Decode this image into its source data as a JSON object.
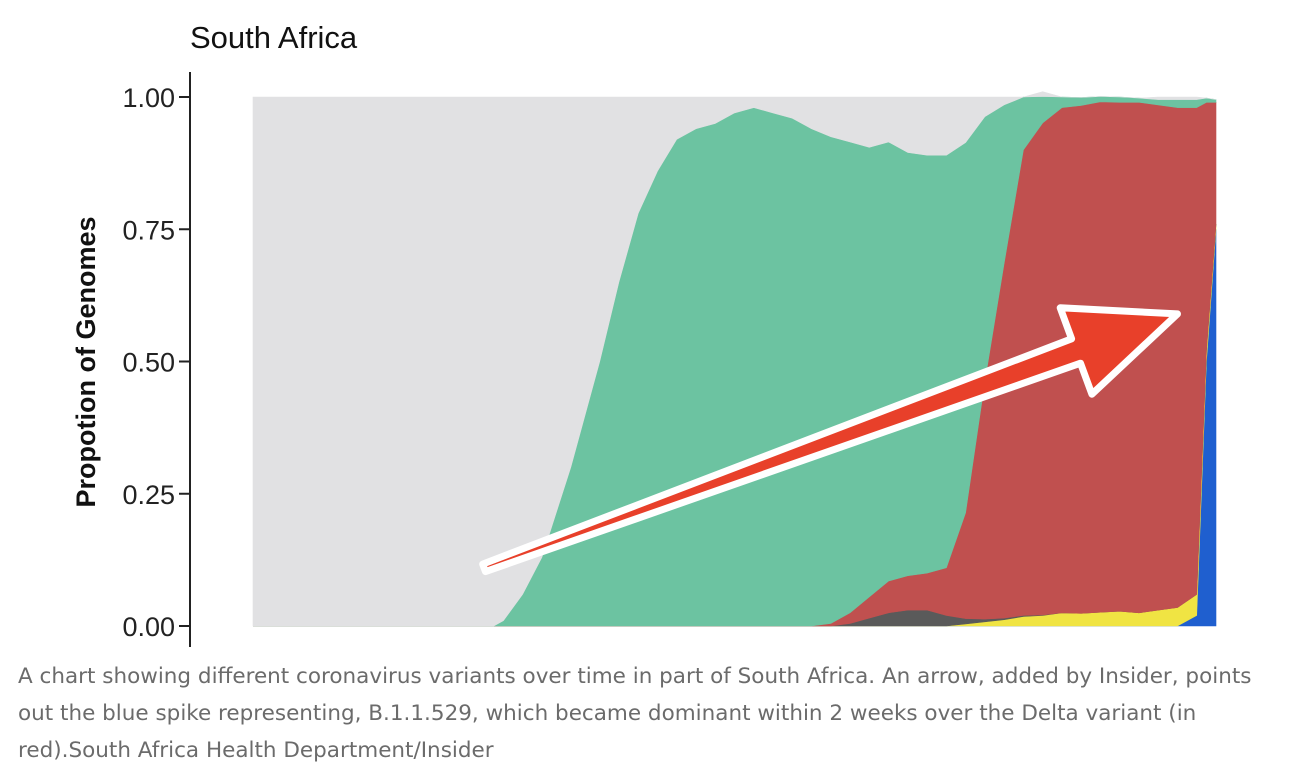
{
  "chart_data": {
    "type": "area",
    "stacked": true,
    "normalized": true,
    "title": "South Africa",
    "xlabel": "",
    "ylabel": "Propotion of Genomes",
    "ylim": [
      0,
      1
    ],
    "yticks": [
      "0.00",
      "0.25",
      "0.50",
      "0.75",
      "1.00"
    ],
    "ytick_values": [
      0,
      0.25,
      0.5,
      0.75,
      1
    ],
    "grid": false,
    "legend": "none",
    "x": [
      0,
      0.05,
      0.1,
      0.15,
      0.2,
      0.25,
      0.26,
      0.28,
      0.3,
      0.33,
      0.36,
      0.38,
      0.4,
      0.42,
      0.44,
      0.46,
      0.48,
      0.5,
      0.52,
      0.54,
      0.56,
      0.58,
      0.6,
      0.62,
      0.64,
      0.66,
      0.68,
      0.7,
      0.72,
      0.74,
      0.76,
      0.78,
      0.8,
      0.82,
      0.84,
      0.86,
      0.88,
      0.9,
      0.92,
      0.94,
      0.96,
      0.98,
      0.99,
      1
    ],
    "series": [
      {
        "color": "#1f5fcf",
        "values": [
          0,
          0,
          0,
          0,
          0,
          0,
          0,
          0,
          0,
          0,
          0,
          0,
          0,
          0,
          0,
          0,
          0,
          0,
          0,
          0,
          0,
          0,
          0,
          0,
          0,
          0,
          0,
          0,
          0,
          0,
          0,
          0,
          0,
          0,
          0,
          0,
          0,
          0,
          0,
          0,
          0,
          0.02,
          0.5,
          0.75
        ]
      },
      {
        "color": "#f0e443",
        "values": [
          0,
          0,
          0,
          0,
          0,
          0,
          0,
          0,
          0,
          0,
          0,
          0,
          0,
          0,
          0,
          0,
          0,
          0,
          0,
          0,
          0,
          0,
          0,
          0,
          0,
          0,
          0,
          0,
          0,
          0.004,
          0.008,
          0.012,
          0.018,
          0.02,
          0.025,
          0.024,
          0.026,
          0.028,
          0.025,
          0.03,
          0.035,
          0.04,
          0.02,
          0.01
        ]
      },
      {
        "color": "#5a5a5a",
        "values": [
          0,
          0,
          0,
          0,
          0,
          0,
          0,
          0,
          0,
          0,
          0,
          0,
          0,
          0,
          0,
          0,
          0,
          0,
          0,
          0,
          0,
          0,
          0,
          0.005,
          0.015,
          0.025,
          0.03,
          0.03,
          0.02,
          0.01,
          0.005,
          0.003,
          0.002,
          0.001,
          0,
          0,
          0,
          0,
          0,
          0,
          0,
          0,
          0,
          0
        ]
      },
      {
        "color": "#c0504f",
        "values": [
          0,
          0,
          0,
          0,
          0,
          0,
          0,
          0,
          0,
          0,
          0,
          0,
          0,
          0,
          0,
          0,
          0,
          0,
          0,
          0,
          0,
          0,
          0.005,
          0.02,
          0.04,
          0.06,
          0.065,
          0.07,
          0.09,
          0.2,
          0.45,
          0.67,
          0.88,
          0.93,
          0.955,
          0.96,
          0.965,
          0.962,
          0.965,
          0.955,
          0.945,
          0.92,
          0.47,
          0.23
        ]
      },
      {
        "color": "#6cc3a1",
        "values": [
          0,
          0,
          0,
          0,
          0,
          0,
          0.01,
          0.06,
          0.13,
          0.3,
          0.5,
          0.65,
          0.78,
          0.86,
          0.92,
          0.94,
          0.95,
          0.97,
          0.98,
          0.97,
          0.96,
          0.94,
          0.92,
          0.89,
          0.85,
          0.83,
          0.8,
          0.79,
          0.78,
          0.7,
          0.5,
          0.3,
          0.1,
          0.05,
          0.02,
          0.015,
          0.01,
          0.01,
          0.008,
          0.01,
          0.015,
          0.015,
          0.008,
          0.005
        ]
      },
      {
        "color": "#e1e1e3",
        "values": [
          1,
          1,
          1,
          1,
          1,
          1,
          0.99,
          0.94,
          0.87,
          0.7,
          0.5,
          0.35,
          0.22,
          0.14,
          0.08,
          0.06,
          0.05,
          0.03,
          0.02,
          0.03,
          0.04,
          0.06,
          0.075,
          0.085,
          0.095,
          0.085,
          0.105,
          0.11,
          0.11,
          0.086,
          0.037,
          0.015,
          0,
          0.009,
          0,
          0,
          0,
          0,
          0,
          0.005,
          0.005,
          0.005,
          0,
          0
        ]
      }
    ],
    "annotation": {
      "type": "arrow",
      "color": "#e8402a",
      "outline": "#ffffff",
      "from": [
        0.24,
        0.11
      ],
      "to": [
        0.96,
        0.59
      ]
    }
  },
  "caption": {
    "text": "A chart showing different coronavirus variants over time in part of South Africa. An arrow, added by Insider, points out the blue spike representing, B.1.1.529, which became dominant within 2 weeks over the Delta variant (in red).",
    "credit": "South Africa Health Department/Insider"
  }
}
